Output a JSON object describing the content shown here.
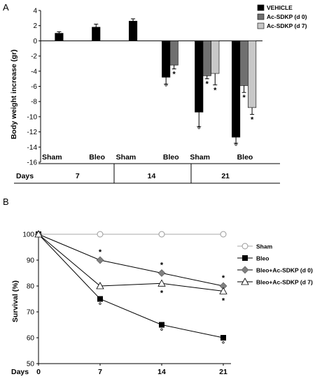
{
  "panels": [
    {
      "label": "A"
    },
    {
      "label": "B"
    }
  ],
  "chart_data": [
    {
      "type": "bar",
      "ylabel": "Body weight increase (gr)",
      "ylim": [
        -16,
        4
      ],
      "yticks": [
        4,
        2,
        0,
        -2,
        -4,
        -6,
        -8,
        -10,
        -12,
        -14,
        -16
      ],
      "grid": false,
      "legend_position": "top-right",
      "x_row_label": "Days",
      "days": [
        "7",
        "14",
        "21"
      ],
      "subgroup_labels": [
        "Sham",
        "Bleo"
      ],
      "series": [
        {
          "name": "VEHICLE",
          "color": "#000000",
          "values": [
            1.0,
            1.8,
            2.6,
            -4.8,
            -9.4,
            -12.7
          ],
          "errors": [
            0.2,
            0.4,
            0.3,
            0.9,
            1.9,
            0.8
          ]
        },
        {
          "name": "Ac-SDKP (d 0)",
          "color": "#707070",
          "values": [
            null,
            null,
            null,
            -3.2,
            -4.6,
            -5.9
          ],
          "errors": [
            null,
            null,
            null,
            0.5,
            0.4,
            0.9
          ]
        },
        {
          "name": "Ac-SDKP (d 7)",
          "color": "#c8c8c8",
          "values": [
            null,
            null,
            null,
            null,
            -4.3,
            -8.8
          ],
          "errors": [
            null,
            null,
            null,
            null,
            1.5,
            0.9
          ]
        }
      ],
      "annotations": [
        {
          "text": "°",
          "group": 3,
          "series": 0
        },
        {
          "text": "*",
          "group": 3,
          "series": 1
        },
        {
          "text": "°",
          "group": 4,
          "series": 0
        },
        {
          "text": "*",
          "group": 4,
          "series": 1
        },
        {
          "text": "*",
          "group": 4,
          "series": 2
        },
        {
          "text": "°",
          "group": 5,
          "series": 0
        },
        {
          "text": "*",
          "group": 5,
          "series": 1
        },
        {
          "text": "*",
          "group": 5,
          "series": 2
        }
      ]
    },
    {
      "type": "line",
      "ylabel": "Survival (%)",
      "xlabel": "Days",
      "x": [
        0,
        7,
        14,
        21
      ],
      "xticks": [
        "0",
        "7",
        "14",
        "21"
      ],
      "ylim": [
        50,
        100
      ],
      "yticks": [
        100,
        90,
        80,
        70,
        60,
        50
      ],
      "grid": false,
      "legend_position": "right",
      "series": [
        {
          "name": "Sham",
          "marker": "circle-open",
          "color": "#999999",
          "values": [
            100,
            100,
            100,
            100
          ]
        },
        {
          "name": "Bleo",
          "marker": "square-filled",
          "color": "#000000",
          "values": [
            100,
            75,
            65,
            60
          ]
        },
        {
          "name": "Bleo+Ac-SDKP (d 0)",
          "marker": "diamond-filled",
          "color": "#808080",
          "values": [
            100,
            90,
            85,
            80
          ]
        },
        {
          "name": "Bleo+Ac-SDKP (d 7)",
          "marker": "triangle-open",
          "color": "#000000",
          "values": [
            100,
            80,
            81,
            78
          ]
        }
      ],
      "annotations": [
        {
          "text": "*",
          "series": 2,
          "x": 7,
          "pos": "above"
        },
        {
          "text": "*",
          "series": 2,
          "x": 14,
          "pos": "above"
        },
        {
          "text": "*",
          "series": 3,
          "x": 14,
          "pos": "below"
        },
        {
          "text": "*",
          "series": 2,
          "x": 21,
          "pos": "above"
        },
        {
          "text": "*",
          "series": 3,
          "x": 21,
          "pos": "below"
        },
        {
          "text": "°",
          "series": 1,
          "x": 7,
          "pos": "below"
        },
        {
          "text": "°",
          "series": 1,
          "x": 14,
          "pos": "below"
        },
        {
          "text": "°",
          "series": 1,
          "x": 21,
          "pos": "below"
        }
      ]
    }
  ]
}
